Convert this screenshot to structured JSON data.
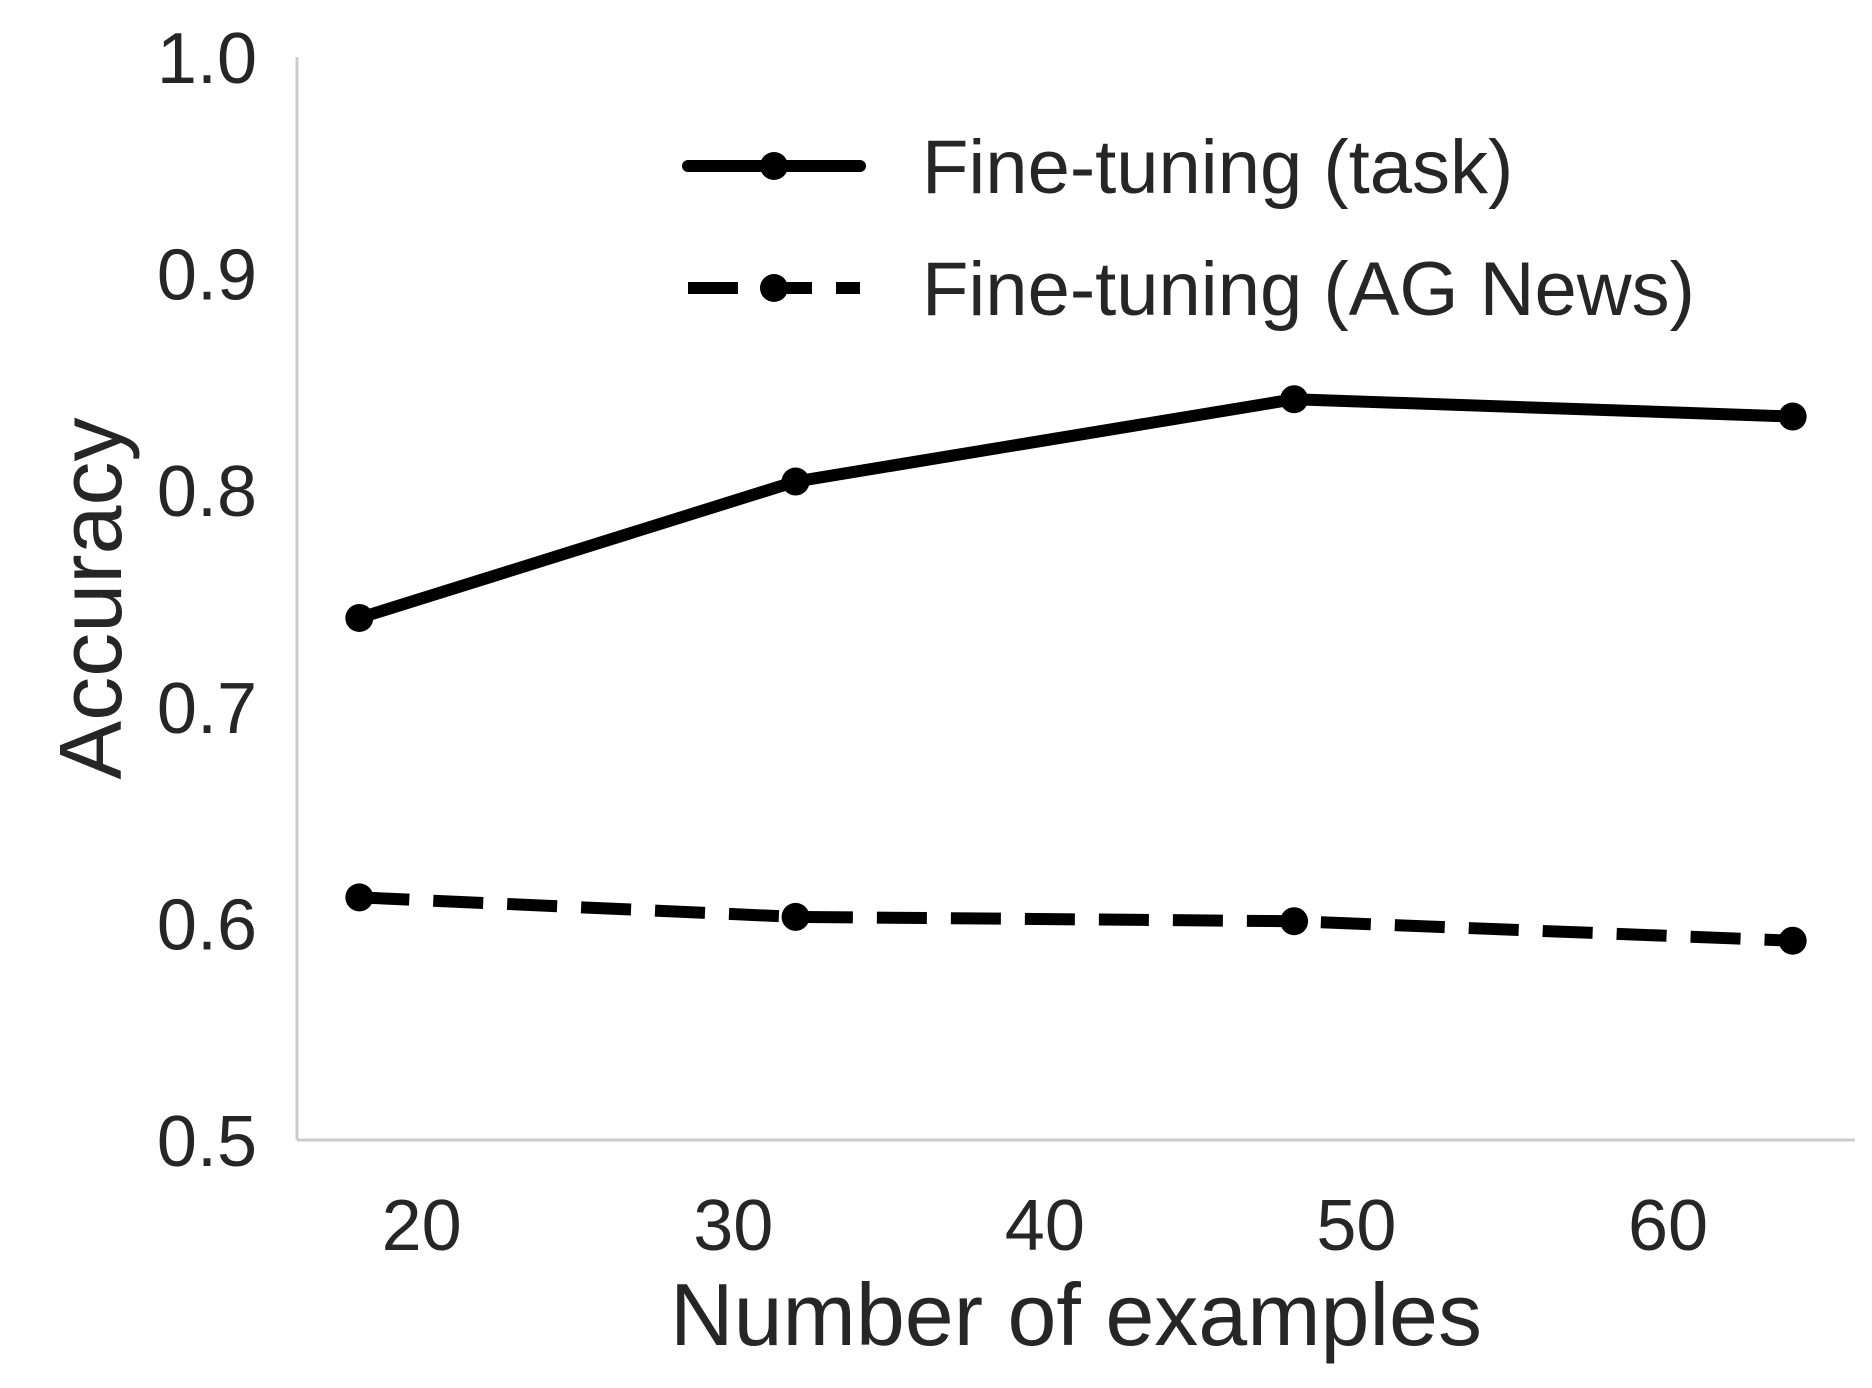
{
  "chart_data": {
    "type": "line",
    "xlabel": "Number of examples",
    "ylabel": "Accuracy",
    "xlim": [
      16,
      66
    ],
    "ylim": [
      0.5,
      1.0
    ],
    "xticks": [
      20,
      30,
      40,
      50,
      60
    ],
    "yticks": [
      0.5,
      0.6,
      0.7,
      0.8,
      0.9,
      1.0
    ],
    "ytick_labels": [
      "0.5",
      "0.6",
      "0.7",
      "0.8",
      "0.9",
      "1.0"
    ],
    "grid": false,
    "legend_position": "top-right",
    "series": [
      {
        "name": "Fine-tuning (task)",
        "style": "solid",
        "color": "#000000",
        "x": [
          18,
          32,
          48,
          64
        ],
        "y": [
          0.741,
          0.804,
          0.842,
          0.834
        ]
      },
      {
        "name": "Fine-tuning (AG News)",
        "style": "dashed",
        "color": "#000000",
        "x": [
          18,
          32,
          48,
          64
        ],
        "y": [
          0.612,
          0.603,
          0.601,
          0.592
        ]
      }
    ],
    "axis_color": "#cccccc"
  }
}
